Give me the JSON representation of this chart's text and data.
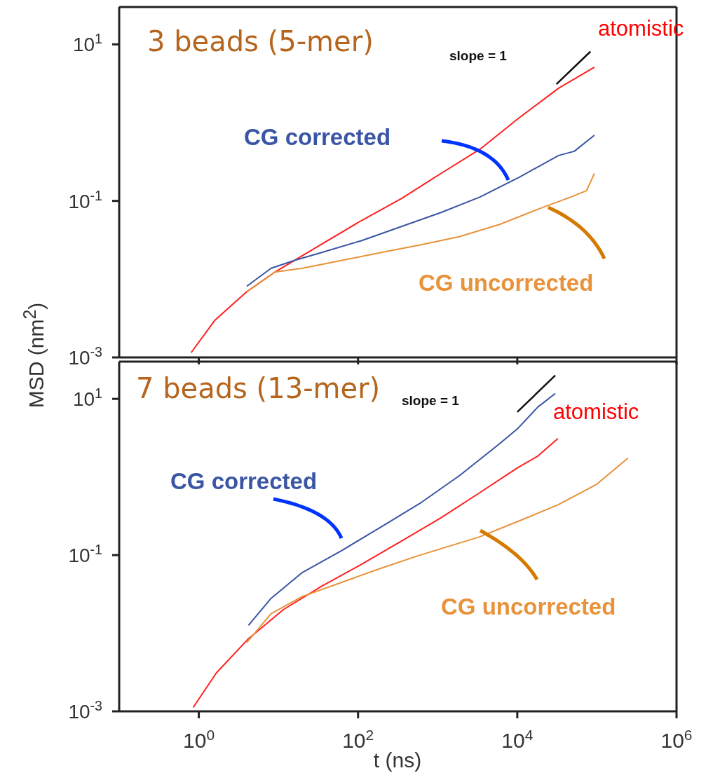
{
  "chart_data": [
    {
      "type": "line",
      "title": "3 beads (5-mer)",
      "ylabel": "MSD (nm$^{2}$)",
      "log": "xy",
      "marker": "none",
      "legend": false,
      "tick_labels": "y",
      "xlim": [
        0.1,
        1000000
      ],
      "xticks": [
        {
          "value": 1,
          "label": null
        },
        {
          "value": 100,
          "label": null
        },
        {
          "value": 10000,
          "label": null
        },
        {
          "value": 1000000,
          "label": null
        }
      ],
      "ylim": [
        0.001,
        30
      ],
      "yticks": [
        {
          "value": 0.001,
          "label": "10$^{-3}$"
        },
        {
          "value": 0.1,
          "label": "10$^{-1}$"
        },
        {
          "value": 10,
          "label": "10$^{1}$"
        }
      ],
      "series": [
        {
          "name": "atomistic",
          "color": "#ff2020",
          "x": [
            0.8,
            1.6,
            4,
            9,
            28,
            110,
            350,
            1100,
            3400,
            10500,
            33000,
            93000
          ],
          "values": [
            0.00115,
            0.003,
            0.0069,
            0.0123,
            0.0245,
            0.056,
            0.107,
            0.224,
            0.457,
            1.15,
            2.75,
            5.1
          ]
        },
        {
          "name": "CG corrected",
          "color": "#3a55a4",
          "x": [
            4,
            8.1,
            16,
            35,
            110,
            350,
            1100,
            3400,
            10500,
            33000,
            52000,
            93000
          ],
          "values": [
            0.0081,
            0.0138,
            0.0174,
            0.0219,
            0.031,
            0.047,
            0.071,
            0.112,
            0.2,
            0.38,
            0.43,
            0.69
          ]
        },
        {
          "name": "CG uncorrected",
          "color": "#e8923a",
          "x": [
            4,
            9,
            20,
            63,
            195,
            620,
            1900,
            6000,
            18600,
            47000,
            74000,
            93000
          ],
          "values": [
            0.0069,
            0.0123,
            0.0138,
            0.0174,
            0.0219,
            0.0275,
            0.035,
            0.05,
            0.079,
            0.112,
            0.135,
            0.224
          ]
        },
        {
          "name": "slope = 1",
          "color": "#111111",
          "x": [
            31000,
            83000
          ],
          "values": [
            3.1,
            8.1
          ]
        }
      ]
    },
    {
      "type": "line",
      "title": "7 beads (13-mer)",
      "xlabel": "t (ns)",
      "log": "xy",
      "marker": "none",
      "legend": false,
      "xlim": [
        0.1,
        1000000
      ],
      "xticks": [
        {
          "value": 1,
          "label": "10$^{0}$"
        },
        {
          "value": 100,
          "label": "10$^{2}$"
        },
        {
          "value": 10000,
          "label": "10$^{4}$"
        },
        {
          "value": 1000000,
          "label": "10$^{6}$"
        }
      ],
      "ylim": [
        0.001,
        30
      ],
      "yticks": [
        {
          "value": 0.001,
          "label": "10$^{-3}$"
        },
        {
          "value": 0.1,
          "label": "10$^{-1}$"
        },
        {
          "value": 10,
          "label": "10$^{1}$"
        }
      ],
      "series": [
        {
          "name": "atomistic",
          "color": "#ff2020",
          "x": [
            0.85,
            1.66,
            4.2,
            11.5,
            35,
            110,
            350,
            1100,
            3300,
            10200,
            18200,
            32400
          ],
          "values": [
            0.00112,
            0.0031,
            0.0085,
            0.02,
            0.04,
            0.076,
            0.151,
            0.3,
            0.62,
            1.32,
            1.86,
            3.1
          ]
        },
        {
          "name": "CG corrected",
          "color": "#3a55a4",
          "x": [
            4.2,
            8.1,
            20,
            63,
            195,
            600,
            1900,
            5900,
            10200,
            18200,
            30000
          ],
          "values": [
            0.0126,
            0.028,
            0.06,
            0.115,
            0.23,
            0.46,
            1.05,
            2.63,
            4.2,
            7.9,
            11.7
          ]
        },
        {
          "name": "CG uncorrected",
          "color": "#e8923a",
          "x": [
            4,
            8.1,
            20,
            63,
            195,
            600,
            3300,
            10200,
            32400,
            100000,
            245000
          ],
          "values": [
            0.0076,
            0.0178,
            0.0295,
            0.045,
            0.068,
            0.1,
            0.17,
            0.27,
            0.44,
            0.81,
            1.74
          ]
        },
        {
          "name": "slope = 1",
          "color": "#111111",
          "x": [
            10000,
            30000
          ],
          "values": [
            6.8,
            20
          ]
        }
      ]
    }
  ]
}
